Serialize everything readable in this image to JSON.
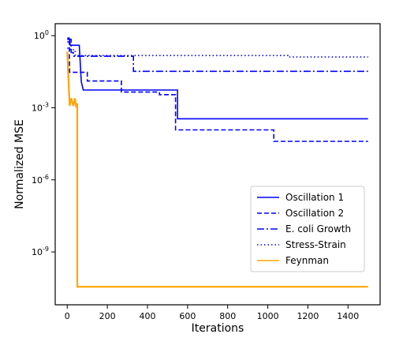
{
  "chart_data": {
    "type": "line",
    "title": "",
    "xlabel": "Iterations",
    "ylabel": "Normalized MSE",
    "xlim": [
      -60,
      1560
    ],
    "ylim_log10": [
      -11.2,
      0.5
    ],
    "yscale": "log",
    "grid": false,
    "legend_position": "lower-right",
    "x_ticks": [
      {
        "value": 0,
        "label": "0"
      },
      {
        "value": 200,
        "label": "200"
      },
      {
        "value": 400,
        "label": "400"
      },
      {
        "value": 600,
        "label": "600"
      },
      {
        "value": 800,
        "label": "800"
      },
      {
        "value": 1000,
        "label": "1000"
      },
      {
        "value": 1200,
        "label": "1200"
      },
      {
        "value": 1400,
        "label": "1400"
      }
    ],
    "y_ticks": [
      {
        "exp": 0,
        "base": "10",
        "sup": "0"
      },
      {
        "exp": -3,
        "base": "10",
        "sup": "-3"
      },
      {
        "exp": -6,
        "base": "10",
        "sup": "-6"
      },
      {
        "exp": -9,
        "base": "10",
        "sup": "-9"
      }
    ],
    "series": [
      {
        "name": "Oscillation 1",
        "color": "#0000ff",
        "dash": "solid",
        "x": [
          0,
          10,
          15,
          30,
          60,
          70,
          80,
          550,
          550,
          560,
          1500
        ],
        "y": [
          0.8,
          0.8,
          0.4,
          0.4,
          0.4,
          0.012,
          0.0055,
          0.0055,
          0.00035,
          0.00035,
          0.00035
        ]
      },
      {
        "name": "Oscillation 2",
        "color": "#0000ff",
        "dash": "dashed",
        "x": [
          0,
          10,
          12,
          50,
          50,
          100,
          100,
          270,
          270,
          460,
          460,
          540,
          540,
          1030,
          1030,
          1500
        ],
        "y": [
          0.55,
          0.55,
          0.03,
          0.03,
          0.03,
          0.03,
          0.013,
          0.013,
          0.0045,
          0.0045,
          0.0035,
          0.0035,
          0.00012,
          0.00012,
          4e-05,
          4e-05
        ]
      },
      {
        "name": "E. coli Growth",
        "color": "#0000ff",
        "dash": "dashdot",
        "x": [
          0,
          20,
          20,
          30,
          30,
          330,
          330,
          1500
        ],
        "y": [
          0.7,
          0.7,
          0.2,
          0.2,
          0.14,
          0.14,
          0.033,
          0.033
        ]
      },
      {
        "name": "Stress-Strain",
        "color": "#0000ff",
        "dash": "dotted",
        "x": [
          0,
          15,
          15,
          40,
          40,
          1100,
          1100,
          1500
        ],
        "y": [
          0.3,
          0.3,
          0.26,
          0.26,
          0.15,
          0.15,
          0.13,
          0.13
        ]
      },
      {
        "name": "Feynman",
        "color": "#ffa500",
        "dash": "solid",
        "x": [
          0,
          12,
          12,
          20,
          20,
          30,
          30,
          38,
          38,
          44,
          44,
          50,
          50,
          1500
        ],
        "y": [
          0.22,
          0.0012,
          0.0012,
          0.0025,
          0.0025,
          0.0012,
          0.0012,
          0.0025,
          0.0025,
          0.0012,
          0.0012,
          0.0015,
          3.55e-11,
          3.55e-11
        ]
      }
    ]
  }
}
